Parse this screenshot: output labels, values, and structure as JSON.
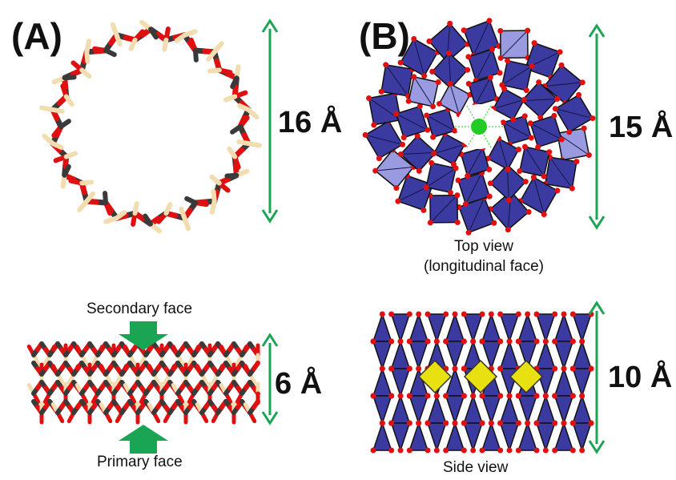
{
  "panels": {
    "a": {
      "label": "(A)",
      "top_dimension": "16 Å",
      "bottom_dimension": "6 Å",
      "secondary_face": "Secondary face",
      "primary_face": "Primary face"
    },
    "b": {
      "label": "(B)",
      "top_dimension": "15 Å",
      "bottom_dimension": "10 Å",
      "top_caption_line1": "Top view",
      "top_caption_line2": "(longitudinal face)",
      "side_caption": "Side view"
    }
  },
  "colors": {
    "arrow_green": "#1aa555",
    "carbon": "#3a3a3a",
    "oxygen": "#e01010",
    "hydrogen": "#f2ddb0",
    "polyhedron": "#3b3aa0",
    "polyhedron_light": "#9a9ae0",
    "center_atom": "#22cc22",
    "core": "#e8e010"
  }
}
